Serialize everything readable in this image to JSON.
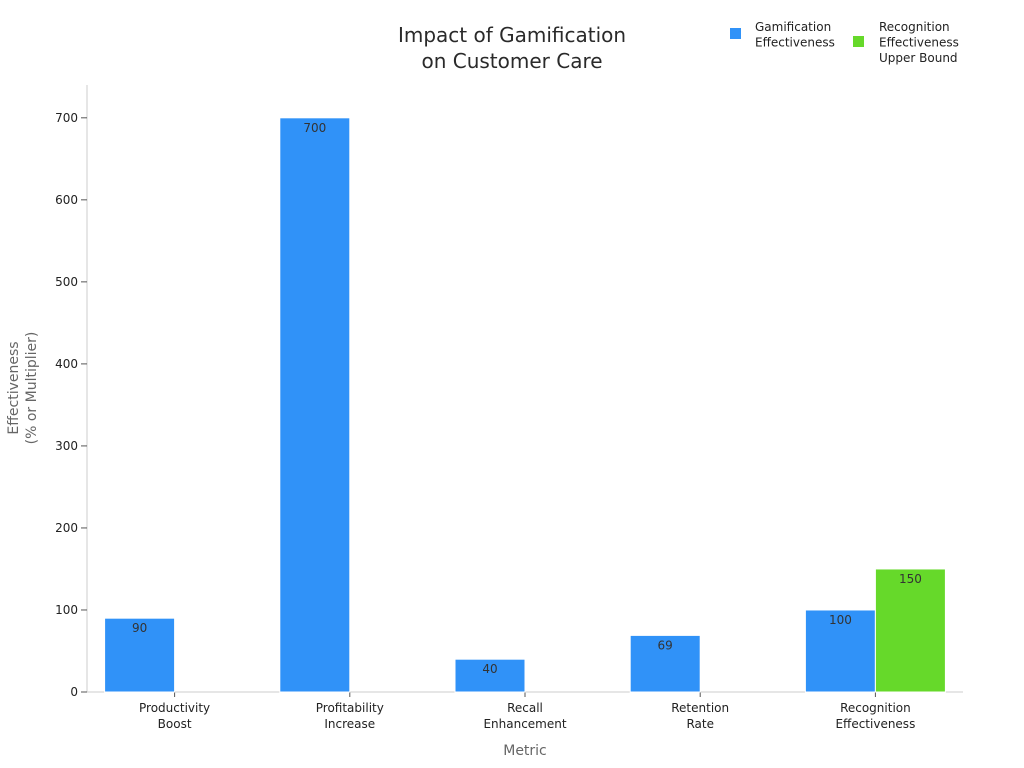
{
  "chart_data": {
    "type": "bar",
    "title": [
      "Impact of Gamification",
      "on Customer Care"
    ],
    "xlabel": "Metric",
    "ylabel": [
      "Effectiveness",
      "(% or Multiplier)"
    ],
    "ylim": [
      0,
      740
    ],
    "yticks": [
      0,
      100,
      200,
      300,
      400,
      500,
      600,
      700
    ],
    "categories": [
      [
        "Productivity",
        "Boost"
      ],
      [
        "Profitability",
        "Increase"
      ],
      [
        "Recall",
        "Enhancement"
      ],
      [
        "Retention",
        "Rate"
      ],
      [
        "Recognition",
        "Effectiveness"
      ]
    ],
    "series": [
      {
        "name": [
          "Gamification",
          "Effectiveness"
        ],
        "color": "#3092f8",
        "values": [
          90,
          700,
          40,
          69,
          100
        ]
      },
      {
        "name": [
          "Recognition",
          "Effectiveness",
          "Upper Bound"
        ],
        "color": "#66d92a",
        "values": [
          null,
          null,
          null,
          null,
          150
        ]
      }
    ],
    "grid": false,
    "legend_position": "top-right"
  }
}
